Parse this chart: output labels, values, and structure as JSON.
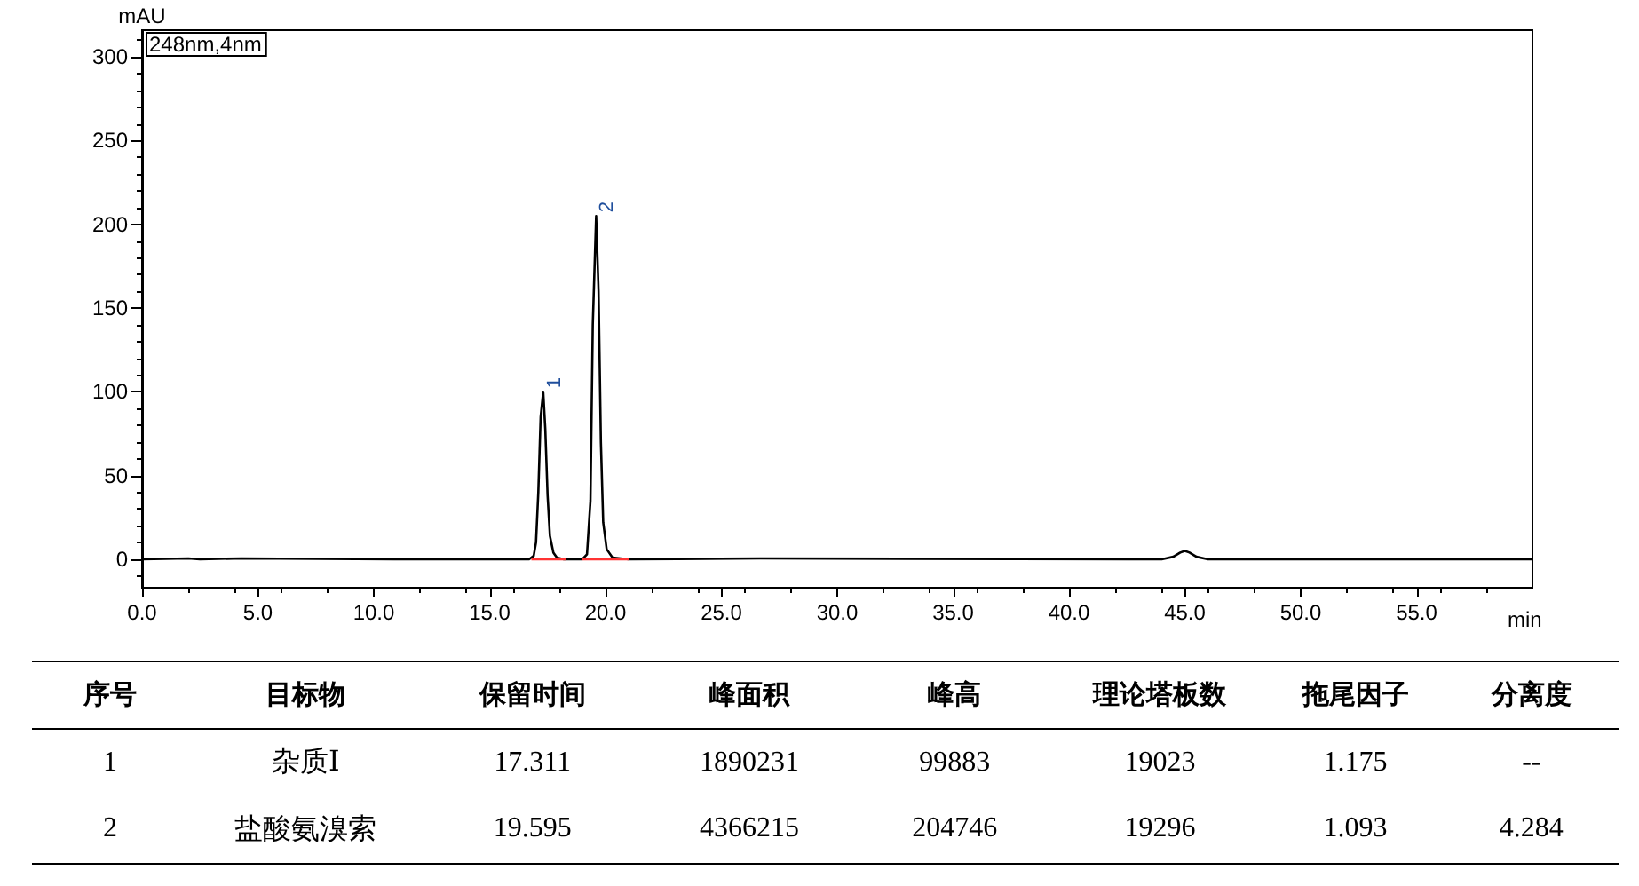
{
  "chart_data": [
    {
      "type": "line",
      "ylabel": "mAU",
      "xlabel": "min",
      "series": [
        {
          "color": "#000000",
          "x": [
            0,
            2,
            2.5,
            4.3,
            10.9,
            16.7,
            16.9,
            17.0,
            17.1,
            17.2,
            17.311,
            17.4,
            17.5,
            17.6,
            17.75,
            17.9,
            18.2,
            19.0,
            19.2,
            19.35,
            19.45,
            19.595,
            19.7,
            19.8,
            19.9,
            20.05,
            20.3,
            21,
            26.7,
            44,
            44.5,
            44.8,
            45.0,
            45.2,
            45.5,
            46,
            60
          ],
          "values": [
            0,
            0.5,
            0,
            0.5,
            0,
            0,
            2,
            10,
            40,
            85,
            100,
            78,
            38,
            14,
            4,
            1,
            0,
            0,
            3,
            35,
            140,
            205,
            160,
            70,
            22,
            6,
            1,
            0,
            0.5,
            0,
            1.5,
            4,
            5,
            4,
            1.5,
            0,
            0
          ]
        },
        {
          "color": "#ff3333",
          "x": [
            16.8,
            18.3,
            18.31,
            19.0,
            21.0
          ],
          "values": [
            0,
            0,
            null,
            0,
            0
          ]
        }
      ],
      "xlim": [
        0,
        60
      ],
      "xticks": [
        {
          "value": 0,
          "label": "0.0"
        },
        {
          "value": 5,
          "label": "5.0"
        },
        {
          "value": 10,
          "label": "10.0"
        },
        {
          "value": 15,
          "label": "15.0"
        },
        {
          "value": 20,
          "label": "20.0"
        },
        {
          "value": 25,
          "label": "25.0"
        },
        {
          "value": 30,
          "label": "30.0"
        },
        {
          "value": 35,
          "label": "35.0"
        },
        {
          "value": 40,
          "label": "40.0"
        },
        {
          "value": 45,
          "label": "45.0"
        },
        {
          "value": 50,
          "label": "50.0"
        },
        {
          "value": 55,
          "label": "55.0"
        }
      ],
      "ylim": [
        -17,
        316
      ],
      "yticks": [
        0,
        50,
        100,
        150,
        200,
        250,
        300
      ],
      "annotations": [
        "248nm,4nm",
        {
          "text": "1",
          "x": 17.311,
          "y": 100
        },
        {
          "text": "2",
          "x": 19.595,
          "y": 205
        }
      ],
      "marker": "none",
      "grid": false
    },
    {
      "type": "other",
      "categories": [
        "序号",
        "目标物",
        "保留时间",
        "峰面积",
        "峰高",
        "理论塔板数",
        "拖尾因子",
        "分离度"
      ],
      "annotations": [
        "1",
        "杂质Ⅰ",
        "17.311",
        "1890231",
        "99883",
        "19023",
        "1.175",
        "--",
        "2",
        "盐酸氨溴索",
        "19.595",
        "4366215",
        "204746",
        "19296",
        "1.093",
        "4.284"
      ]
    }
  ]
}
